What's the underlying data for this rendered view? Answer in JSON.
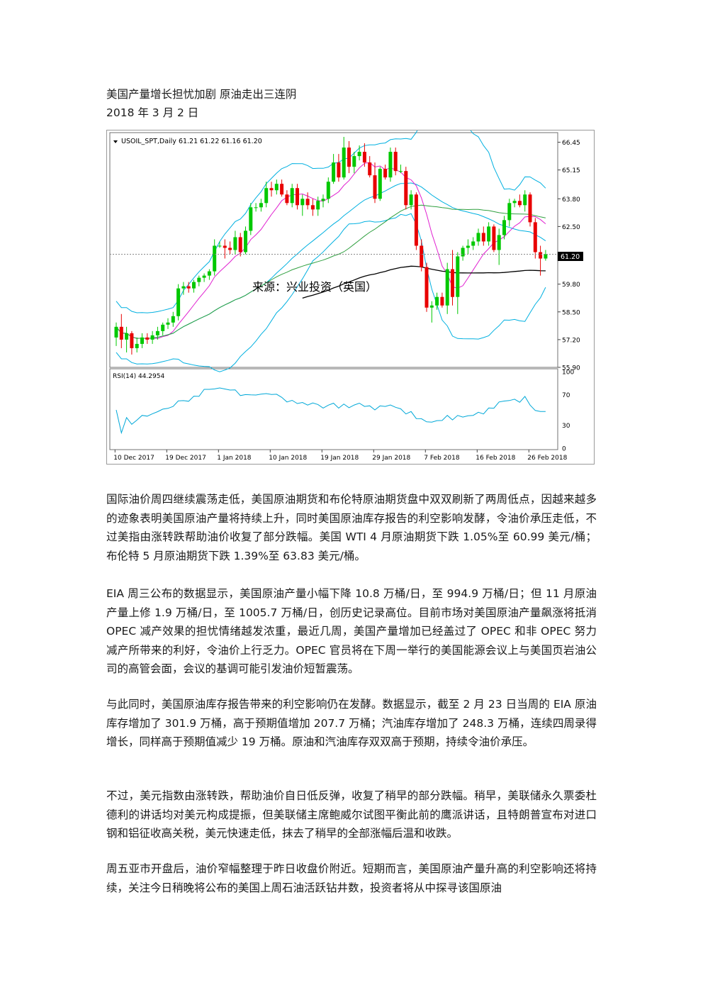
{
  "doc": {
    "title": "美国产量增长担忧加剧  原油走出三连阴",
    "date": "2018 年 3 月 2 日",
    "paragraphs": [
      "国际油价周四继续震荡走低，美国原油期货和布伦特原油期货盘中双双刷新了两周低点，因越来越多的迹象表明美国原油产量将持续上升，同时美国原油库存报告的利空影响发酵，令油价承压走低，不过美指由涨转跌帮助油价收复了部分跌幅。美国 WTI 4 月原油期货下跌 1.05%至 60.99 美元/桶；布伦特 5 月原油期货下跌 1.39%至 63.83 美元/桶。",
      "EIA 周三公布的数据显示，美国原油产量小幅下降 10.8 万桶/日，至 994.9 万桶/日；但 11 月原油产量上修 1.9 万桶/日，至 1005.7 万桶/日，创历史记录高位。目前市场对美国原油产量飙涨将抵消 OPEC 减产效果的担忧情绪越发浓重，最近几周，美国产量增加已经盖过了 OPEC 和非 OPEC 努力减产所带来的利好，令油价上行乏力。OPEC 官员将在下周一举行的美国能源会议上与美国页岩油公司的高管会面，会议的基调可能引发油价短暂震荡。",
      "与此同时，美国原油库存报告带来的利空影响仍在发酵。数据显示，截至 2 月 23 日当周的 EIA 原油库存增加了 301.9 万桶，高于预期值增加 207.7 万桶；汽油库存增加了 248.3 万桶，连续四周录得增长，同样高于预期值减少 19 万桶。原油和汽油库存双双高于预期，持续令油价承压。",
      "不过，美元指数由涨转跌，帮助油价自日低反弹，收复了稍早的部分跌幅。稍早，美联储永久票委杜德利的讲话均对美元构成提振，但美联储主席鲍威尔试图平衡此前的鹰派讲话，且特朗普宣布对进口钢和铝征收高关税，美元快速走低，抹去了稍早的全部涨幅后温和收跌。",
      "周五亚市开盘后，油价窄幅整理于昨日收盘价附近。短期而言，美国原油产量升高的利空影响还将持续，关注今日稍晚将公布的美国上周石油活跃钻井数，投资者将从中探寻该国原油"
    ]
  },
  "chart": {
    "header": "USOIL_SPT,Daily  61.21 61.22 61.16 61.20",
    "watermark": "来源：兴业投资（英国）",
    "rsi_label": "RSI(14) 44.2954",
    "current_price_label": "61.20",
    "colors": {
      "up": "#00c800",
      "down": "#e80000",
      "bands": "#00b0e0",
      "ma_short": "#e020d0",
      "ma_mid": "#30a040",
      "ma_long": "#000000",
      "rsi": "#00a8d8"
    }
  },
  "chart_data": {
    "type": "candlestick",
    "symbol": "USOIL_SPT",
    "timeframe": "Daily",
    "ohlc_header": [
      61.21,
      61.22,
      61.16,
      61.2
    ],
    "price_ticks": [
      "66.45",
      "65.15",
      "63.80",
      "62.50",
      "61.20",
      "59.80",
      "58.50",
      "57.20",
      "55.90"
    ],
    "price_ticks_values": [
      66.45,
      65.15,
      63.8,
      62.5,
      61.2,
      59.8,
      58.5,
      57.2,
      55.9
    ],
    "ylim": [
      55.9,
      66.9
    ],
    "date_labels": [
      "10 Dec 2017",
      "19 Dec 2017",
      "1 Jan 2018",
      "10 Jan 2018",
      "19 Jan 2018",
      "29 Jan 2018",
      "7 Feb 2018",
      "16 Feb 2018",
      "26 Feb 2018"
    ],
    "date_label_index": [
      1,
      11,
      21,
      31,
      41,
      51,
      61,
      71,
      81
    ],
    "candles": [
      {
        "o": 57.3,
        "h": 58.0,
        "l": 56.9,
        "c": 57.8
      },
      {
        "o": 57.8,
        "h": 58.4,
        "l": 56.8,
        "c": 57.2
      },
      {
        "o": 57.2,
        "h": 57.8,
        "l": 56.6,
        "c": 57.5
      },
      {
        "o": 57.5,
        "h": 57.6,
        "l": 56.5,
        "c": 56.8
      },
      {
        "o": 56.8,
        "h": 57.3,
        "l": 56.6,
        "c": 57.0
      },
      {
        "o": 57.0,
        "h": 57.5,
        "l": 56.8,
        "c": 57.3
      },
      {
        "o": 57.3,
        "h": 57.5,
        "l": 57.0,
        "c": 57.2
      },
      {
        "o": 57.2,
        "h": 57.6,
        "l": 57.0,
        "c": 57.4
      },
      {
        "o": 57.4,
        "h": 57.8,
        "l": 57.2,
        "c": 57.6
      },
      {
        "o": 57.6,
        "h": 58.0,
        "l": 57.4,
        "c": 57.9
      },
      {
        "o": 57.9,
        "h": 58.2,
        "l": 57.7,
        "c": 58.0
      },
      {
        "o": 58.0,
        "h": 58.5,
        "l": 57.8,
        "c": 58.3
      },
      {
        "o": 58.3,
        "h": 59.8,
        "l": 58.1,
        "c": 59.6
      },
      {
        "o": 59.6,
        "h": 59.9,
        "l": 59.3,
        "c": 59.7
      },
      {
        "o": 59.7,
        "h": 59.9,
        "l": 59.4,
        "c": 59.6
      },
      {
        "o": 59.6,
        "h": 60.0,
        "l": 59.4,
        "c": 59.9
      },
      {
        "o": 59.9,
        "h": 60.2,
        "l": 59.7,
        "c": 60.1
      },
      {
        "o": 60.1,
        "h": 60.3,
        "l": 59.9,
        "c": 60.2
      },
      {
        "o": 60.2,
        "h": 60.5,
        "l": 60.0,
        "c": 60.4
      },
      {
        "o": 60.4,
        "h": 61.9,
        "l": 60.2,
        "c": 61.6
      },
      {
        "o": 61.6,
        "h": 61.8,
        "l": 61.5,
        "c": 61.6
      },
      {
        "o": 61.6,
        "h": 61.9,
        "l": 61.0,
        "c": 61.5
      },
      {
        "o": 61.5,
        "h": 61.8,
        "l": 61.2,
        "c": 61.4
      },
      {
        "o": 61.4,
        "h": 62.3,
        "l": 61.2,
        "c": 62.0
      },
      {
        "o": 62.0,
        "h": 62.2,
        "l": 61.1,
        "c": 61.3
      },
      {
        "o": 61.3,
        "h": 62.5,
        "l": 61.2,
        "c": 62.3
      },
      {
        "o": 62.3,
        "h": 63.6,
        "l": 62.1,
        "c": 63.4
      },
      {
        "o": 63.4,
        "h": 63.6,
        "l": 63.2,
        "c": 63.4
      },
      {
        "o": 63.4,
        "h": 63.8,
        "l": 63.2,
        "c": 63.6
      },
      {
        "o": 63.6,
        "h": 64.6,
        "l": 63.4,
        "c": 64.3
      },
      {
        "o": 64.3,
        "h": 64.6,
        "l": 63.9,
        "c": 64.2
      },
      {
        "o": 64.2,
        "h": 64.7,
        "l": 64.0,
        "c": 64.5
      },
      {
        "o": 64.5,
        "h": 64.7,
        "l": 63.9,
        "c": 64.0
      },
      {
        "o": 64.0,
        "h": 64.2,
        "l": 63.5,
        "c": 63.6
      },
      {
        "o": 63.6,
        "h": 64.5,
        "l": 63.4,
        "c": 64.3
      },
      {
        "o": 64.3,
        "h": 64.5,
        "l": 63.3,
        "c": 63.5
      },
      {
        "o": 63.5,
        "h": 64.0,
        "l": 63.0,
        "c": 63.8
      },
      {
        "o": 63.8,
        "h": 64.1,
        "l": 63.3,
        "c": 63.5
      },
      {
        "o": 63.5,
        "h": 63.8,
        "l": 63.0,
        "c": 63.3
      },
      {
        "o": 63.3,
        "h": 63.9,
        "l": 63.0,
        "c": 63.7
      },
      {
        "o": 63.7,
        "h": 64.0,
        "l": 63.4,
        "c": 63.8
      },
      {
        "o": 63.8,
        "h": 64.8,
        "l": 63.6,
        "c": 64.6
      },
      {
        "o": 64.6,
        "h": 65.9,
        "l": 64.5,
        "c": 65.5
      },
      {
        "o": 65.5,
        "h": 65.9,
        "l": 64.6,
        "c": 64.8
      },
      {
        "o": 64.8,
        "h": 66.7,
        "l": 64.7,
        "c": 66.2
      },
      {
        "o": 66.2,
        "h": 66.5,
        "l": 65.0,
        "c": 65.3
      },
      {
        "o": 65.3,
        "h": 66.0,
        "l": 65.0,
        "c": 65.8
      },
      {
        "o": 65.8,
        "h": 66.3,
        "l": 65.6,
        "c": 66.0
      },
      {
        "o": 66.0,
        "h": 66.4,
        "l": 65.3,
        "c": 65.5
      },
      {
        "o": 65.5,
        "h": 65.8,
        "l": 64.8,
        "c": 64.9
      },
      {
        "o": 64.9,
        "h": 65.5,
        "l": 63.6,
        "c": 63.8
      },
      {
        "o": 63.8,
        "h": 65.3,
        "l": 63.7,
        "c": 65.2
      },
      {
        "o": 65.2,
        "h": 65.4,
        "l": 64.7,
        "c": 64.8
      },
      {
        "o": 64.8,
        "h": 66.2,
        "l": 64.6,
        "c": 66.0
      },
      {
        "o": 66.0,
        "h": 66.2,
        "l": 64.9,
        "c": 65.1
      },
      {
        "o": 65.1,
        "h": 65.4,
        "l": 65.0,
        "c": 65.1
      },
      {
        "o": 65.1,
        "h": 65.3,
        "l": 63.3,
        "c": 63.5
      },
      {
        "o": 63.5,
        "h": 64.2,
        "l": 63.3,
        "c": 64.0
      },
      {
        "o": 64.0,
        "h": 64.1,
        "l": 61.4,
        "c": 61.6
      },
      {
        "o": 61.6,
        "h": 61.9,
        "l": 60.4,
        "c": 60.6
      },
      {
        "o": 60.6,
        "h": 60.8,
        "l": 58.5,
        "c": 58.7
      },
      {
        "o": 58.7,
        "h": 59.0,
        "l": 58.0,
        "c": 58.8
      },
      {
        "o": 58.8,
        "h": 59.4,
        "l": 58.6,
        "c": 59.2
      },
      {
        "o": 59.2,
        "h": 59.4,
        "l": 58.7,
        "c": 58.8
      },
      {
        "o": 58.8,
        "h": 60.8,
        "l": 58.4,
        "c": 60.5
      },
      {
        "o": 60.5,
        "h": 61.4,
        "l": 58.8,
        "c": 59.2
      },
      {
        "o": 59.2,
        "h": 61.3,
        "l": 58.4,
        "c": 61.1
      },
      {
        "o": 61.1,
        "h": 61.6,
        "l": 60.9,
        "c": 61.5
      },
      {
        "o": 61.5,
        "h": 61.9,
        "l": 61.2,
        "c": 61.6
      },
      {
        "o": 61.6,
        "h": 62.0,
        "l": 61.4,
        "c": 61.8
      },
      {
        "o": 61.8,
        "h": 62.4,
        "l": 61.6,
        "c": 62.2
      },
      {
        "o": 62.2,
        "h": 62.5,
        "l": 61.6,
        "c": 61.8
      },
      {
        "o": 61.8,
        "h": 62.7,
        "l": 61.6,
        "c": 62.5
      },
      {
        "o": 62.5,
        "h": 62.6,
        "l": 61.3,
        "c": 61.4
      },
      {
        "o": 61.4,
        "h": 62.4,
        "l": 60.7,
        "c": 62.1
      },
      {
        "o": 62.1,
        "h": 63.0,
        "l": 61.9,
        "c": 62.8
      },
      {
        "o": 62.8,
        "h": 63.8,
        "l": 62.5,
        "c": 63.6
      },
      {
        "o": 63.6,
        "h": 63.8,
        "l": 63.4,
        "c": 63.7
      },
      {
        "o": 63.7,
        "h": 64.0,
        "l": 63.4,
        "c": 63.5
      },
      {
        "o": 63.5,
        "h": 64.2,
        "l": 63.2,
        "c": 64.0
      },
      {
        "o": 64.0,
        "h": 64.1,
        "l": 62.5,
        "c": 62.7
      },
      {
        "o": 62.7,
        "h": 62.9,
        "l": 61.0,
        "c": 61.3
      },
      {
        "o": 61.3,
        "h": 61.6,
        "l": 60.2,
        "c": 61.0
      },
      {
        "o": 61.0,
        "h": 61.4,
        "l": 60.9,
        "c": 61.2
      }
    ],
    "rsi_ticks": [
      "100",
      "70",
      "30",
      "0"
    ],
    "rsi_ticks_values": [
      100,
      70,
      30,
      0
    ]
  }
}
